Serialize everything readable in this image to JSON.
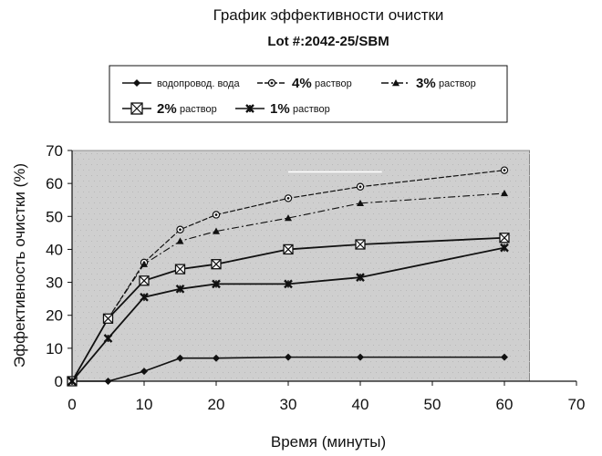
{
  "chart_data": {
    "type": "line",
    "title": "График эффективности очистки",
    "subtitle": "Lot #:2042-25/SBM",
    "xlabel": "Время (минуты)",
    "ylabel": "Эффективность очистки (%)",
    "xlim": [
      0,
      70
    ],
    "ylim": [
      0,
      70
    ],
    "x_ticks": [
      "0",
      "10",
      "20",
      "30",
      "40",
      "50",
      "60",
      "70"
    ],
    "y_ticks": [
      "0",
      "10",
      "20",
      "30",
      "40",
      "50",
      "60",
      "70"
    ],
    "grid": false,
    "legend_position": "top",
    "x": [
      0,
      5,
      10,
      15,
      20,
      30,
      40,
      60
    ],
    "series": [
      {
        "name": "водопровод. вода",
        "legend_prefix": "",
        "legend_suffix": "водопровод. вода",
        "marker": "diamond",
        "values": [
          0,
          0,
          3,
          7,
          7,
          7.3,
          7.3,
          7.3
        ]
      },
      {
        "name": "4% раствор",
        "legend_prefix": "4%",
        "legend_suffix": "раствор",
        "marker": "circle",
        "values": [
          0,
          19,
          36,
          46,
          50.5,
          55.5,
          59,
          64
        ]
      },
      {
        "name": "3% раствор",
        "legend_prefix": "3%",
        "legend_suffix": "раствор",
        "marker": "triangle",
        "values": [
          0,
          19,
          35.5,
          42.5,
          45.5,
          49.5,
          54,
          57
        ]
      },
      {
        "name": "2% раствор",
        "legend_prefix": "2%",
        "legend_suffix": "раствор",
        "marker": "boxx",
        "values": [
          0,
          19,
          30.5,
          34,
          35.5,
          40,
          41.5,
          43.5
        ]
      },
      {
        "name": "1% раствор",
        "legend_prefix": "1%",
        "legend_suffix": "раствор",
        "marker": "asterisk",
        "values": [
          0,
          13,
          25.5,
          28,
          29.5,
          29.5,
          31.5,
          40.5
        ]
      }
    ]
  },
  "colors": {
    "plot_area": "#cfcfcf",
    "line": "#111111"
  }
}
